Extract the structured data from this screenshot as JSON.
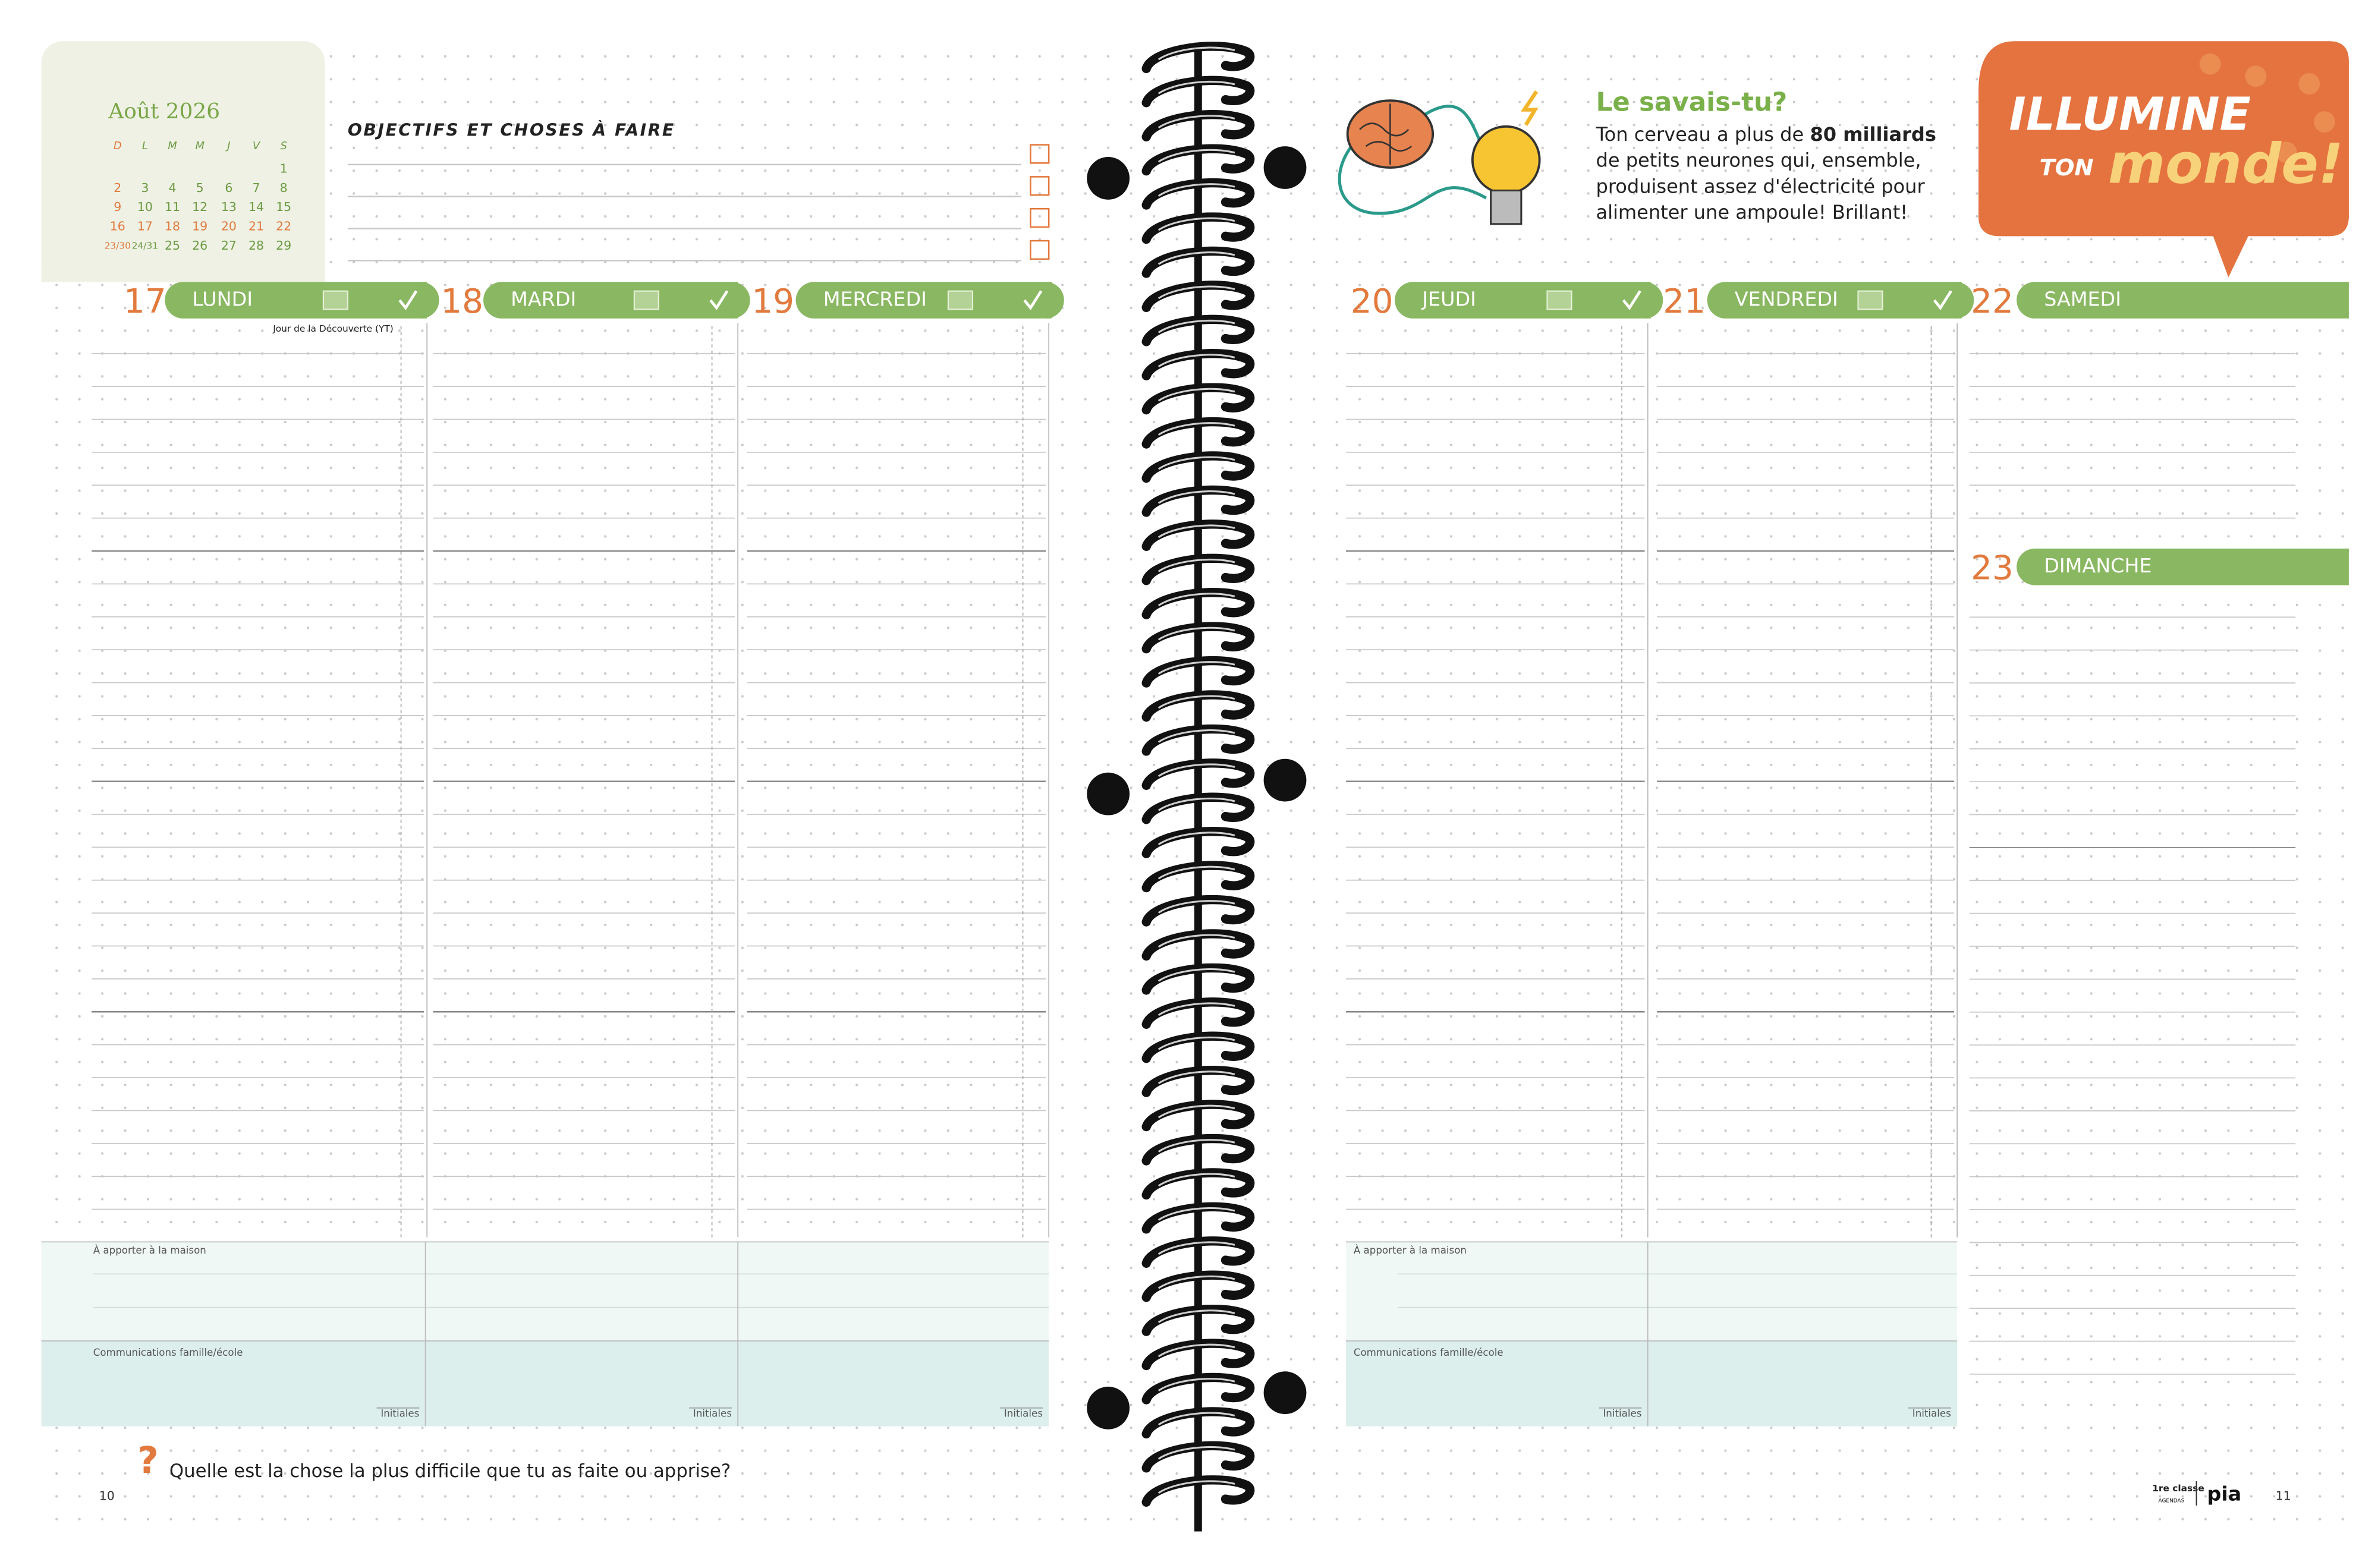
{
  "calendar": {
    "month": "Août 2026",
    "weekdays": [
      "D",
      "L",
      "M",
      "M",
      "J",
      "V",
      "S"
    ],
    "weeks": [
      [
        null,
        null,
        null,
        null,
        null,
        null,
        1
      ],
      [
        2,
        3,
        4,
        5,
        6,
        7,
        8
      ],
      [
        9,
        10,
        11,
        12,
        13,
        14,
        15
      ],
      [
        16,
        17,
        18,
        19,
        20,
        21,
        22
      ],
      [
        "23/30",
        "24/31",
        25,
        26,
        27,
        28,
        29
      ]
    ]
  },
  "goals_title": "OBJECTIFS ET CHOSES À FAIRE",
  "days": [
    {
      "number": 17,
      "name": "LUNDI",
      "note": "Jour de la Découverte (YT)"
    },
    {
      "number": 18,
      "name": "MARDI"
    },
    {
      "number": 19,
      "name": "MERCREDI"
    },
    {
      "number": 20,
      "name": "JEUDI"
    },
    {
      "number": 21,
      "name": "VENDREDI"
    },
    {
      "number": 22,
      "name": "SAMEDI"
    },
    {
      "number": 23,
      "name": "DIMANCHE"
    }
  ],
  "bring_home_label": "À apporter à la maison",
  "communications_label": "Communications famille/école",
  "initials_label": "Initiales",
  "fact": {
    "title": "Le savais-tu?",
    "lines": [
      "Ton cerveau a plus de",
      "80 milliards",
      "de petits neurones qui, ensemble,",
      "produisent assez d'électricité pour",
      "alimenter une ampoule! Brillant!"
    ]
  },
  "banner": {
    "line1": "ILLUMINE",
    "line2a": "TON",
    "line2b": "monde!"
  },
  "question": "Quelle est la chose la plus difficile que tu as faite ou apprise?",
  "page_numbers": [
    10,
    11
  ],
  "logos": {
    "brand1": "1re classe",
    "brand1_sub": "AGENDAS",
    "brand2": "pia"
  }
}
